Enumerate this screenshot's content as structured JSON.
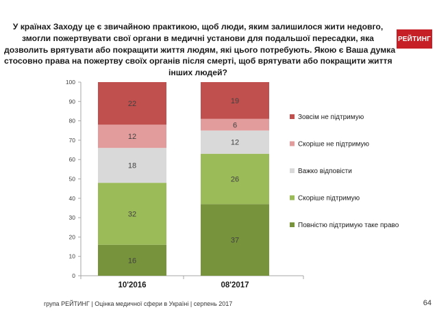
{
  "header": {
    "title_lines": [
      "У країнах Заходу це є звичайною практикою, щоб люди, яким залишилося жити недовго,",
      "змогли пожертвувати свої органи в медичні установи для подальшої пересадки, яка",
      "дозволить врятувати або покращити життя людям, які цього потребують. Якою є Ваша думка",
      "стосовно права на пожертву своїх органів після смерті, щоб врятувати або покращити життя",
      "інших людей?"
    ],
    "logo_text": "РЕЙТИНГ"
  },
  "footer": {
    "text": "група РЕЙТИНГ  |  Оцінка медичної сфери в Україні  |  серпень 2017",
    "page_number": "64"
  },
  "chart_data": {
    "type": "bar",
    "stacked": true,
    "categories": [
      "10'2016",
      "08'2017"
    ],
    "ylim": [
      0,
      100
    ],
    "yticks": [
      0,
      10,
      20,
      30,
      40,
      50,
      60,
      70,
      80,
      90,
      100
    ],
    "grid": false,
    "legend_position": "right",
    "series": [
      {
        "name": "Повністю підтримую таке право",
        "values": [
          16,
          37
        ],
        "color": "#77933c"
      },
      {
        "name": "Скоріше підтримую",
        "values": [
          32,
          26
        ],
        "color": "#9bbb59"
      },
      {
        "name": "Важко відповісти",
        "values": [
          18,
          12
        ],
        "color": "#d9d9d9"
      },
      {
        "name": "Скоріше не підтримую",
        "values": [
          12,
          6
        ],
        "color": "#e39c9c"
      },
      {
        "name": "Зовсім не підтримую",
        "values": [
          22,
          19
        ],
        "color": "#c0504d"
      }
    ]
  }
}
